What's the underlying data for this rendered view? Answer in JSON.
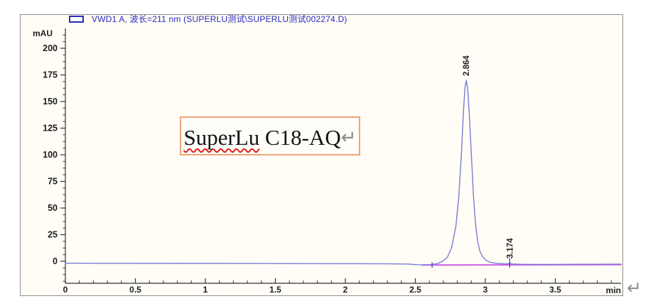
{
  "header": {
    "signal_label": "VWD1 A, 波长=211 nm (SUPERLU测试\\SUPERLU测试002274.D)",
    "color": "#2a2ac0"
  },
  "annotation_box": {
    "word_flagged": "SuperLu",
    "word_rest": " C18-AQ",
    "return_mark": "↵",
    "border_color": "#eda679",
    "squiggle_color": "#e02020"
  },
  "trailing_return_mark": "↵",
  "frame": {
    "border_color": "#8f8f8f",
    "background": "#fffdf6"
  },
  "chart_data": {
    "type": "line",
    "title": "VWD1 A, 波长=211 nm (SUPERLU测试\\SUPERLU测试002274.D)",
    "xlabel": "min",
    "ylabel": "mAU",
    "xlim": [
      0,
      3.97
    ],
    "ylim": [
      -21,
      220
    ],
    "x_ticks": [
      0,
      0.5,
      1,
      1.5,
      2,
      2.5,
      3,
      3.5
    ],
    "x_minor_step": 0.1,
    "y_ticks": [
      0,
      25,
      50,
      75,
      100,
      125,
      150,
      175,
      200
    ],
    "y_minor_step": 6.25,
    "grid": false,
    "legend_position": "top-left",
    "axis_color": "#333333",
    "tick_label_color": "#1d1d1d",
    "series": [
      {
        "name": "integration-baseline",
        "color": "#cf5fe0",
        "width": 2,
        "points": [
          [
            2.55,
            -3.5
          ],
          [
            3.97,
            -3.2
          ]
        ]
      },
      {
        "name": "VWD1-A-signal",
        "color": "#7b7bd9",
        "width": 1.4,
        "points": [
          [
            0,
            -1.8
          ],
          [
            0.4,
            -1.9
          ],
          [
            0.8,
            -2.0
          ],
          [
            1.2,
            -2.1
          ],
          [
            1.6,
            -2.2
          ],
          [
            2.0,
            -2.3
          ],
          [
            2.3,
            -2.4
          ],
          [
            2.45,
            -2.6
          ],
          [
            2.52,
            -3.3
          ],
          [
            2.58,
            -3.4
          ],
          [
            2.62,
            -3.1
          ],
          [
            2.66,
            -2.2
          ],
          [
            2.7,
            0.5
          ],
          [
            2.73,
            4
          ],
          [
            2.76,
            13
          ],
          [
            2.79,
            33
          ],
          [
            2.81,
            60
          ],
          [
            2.83,
            103
          ],
          [
            2.845,
            144
          ],
          [
            2.855,
            163
          ],
          [
            2.864,
            170
          ],
          [
            2.874,
            162
          ],
          [
            2.886,
            138
          ],
          [
            2.9,
            101
          ],
          [
            2.915,
            62
          ],
          [
            2.93,
            35
          ],
          [
            2.945,
            19
          ],
          [
            2.96,
            10
          ],
          [
            2.98,
            4.5
          ],
          [
            3.0,
            1.5
          ],
          [
            3.03,
            -0.8
          ],
          [
            3.07,
            -1.8
          ],
          [
            3.12,
            -2.3
          ],
          [
            3.155,
            -2.5
          ],
          [
            3.174,
            -1.6
          ],
          [
            3.19,
            -2.5
          ],
          [
            3.25,
            -2.8
          ],
          [
            3.35,
            -2.9
          ],
          [
            3.5,
            -2.9
          ],
          [
            3.7,
            -2.8
          ],
          [
            3.97,
            -2.7
          ]
        ]
      }
    ],
    "peaks": [
      {
        "label": "2.864",
        "t": 2.864,
        "apex_mau": 170
      },
      {
        "label": "3.174",
        "t": 3.174,
        "apex_mau": -1.5
      }
    ],
    "integration_markers": [
      {
        "t": 2.62,
        "from_mau": -6,
        "to_mau": -1
      },
      {
        "t": 3.174,
        "from_mau": -6,
        "to_mau": 3
      }
    ],
    "marker_color": "#3a3a99"
  }
}
